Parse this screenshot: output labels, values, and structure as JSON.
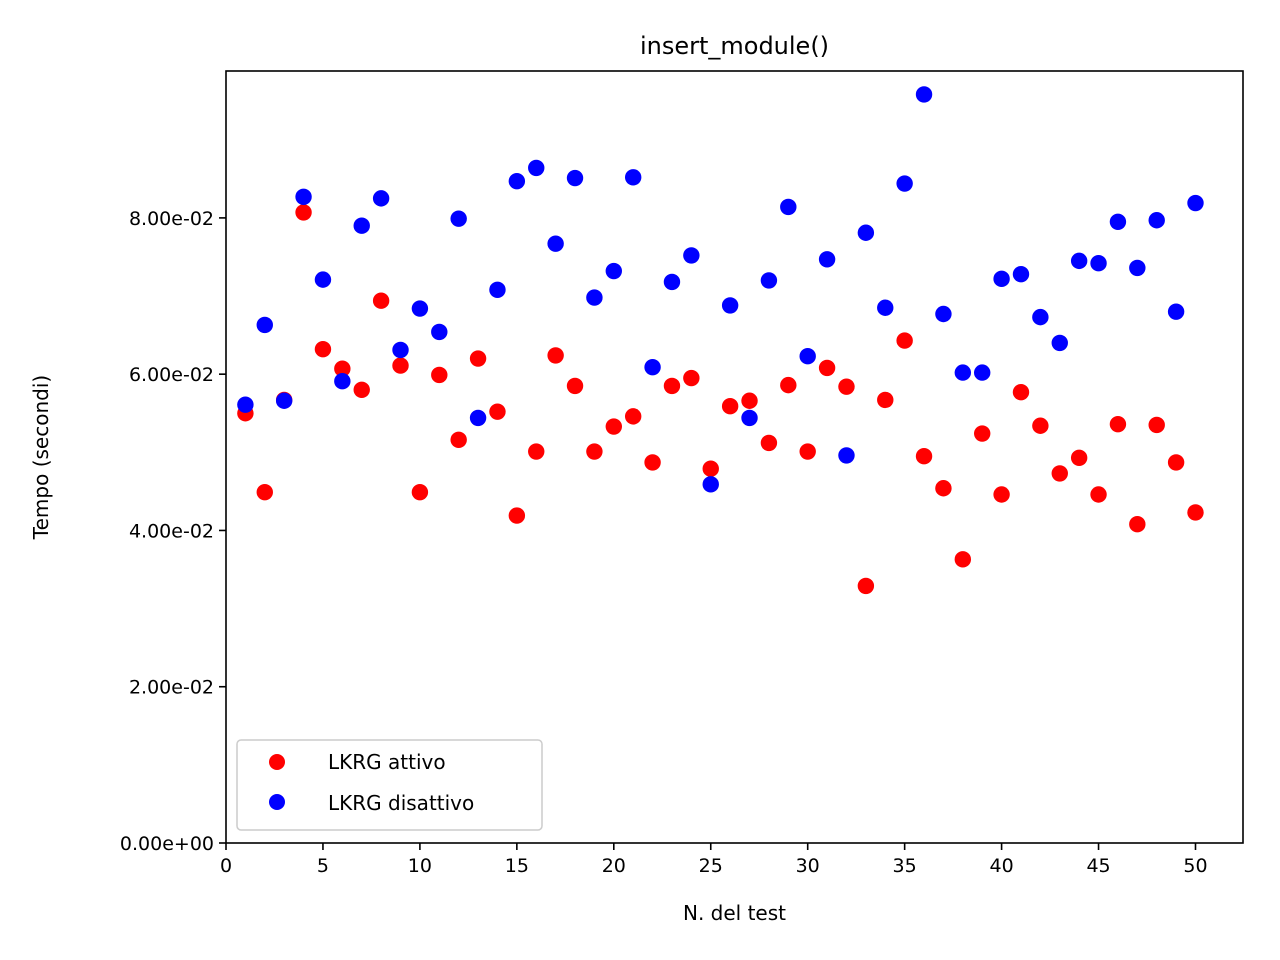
{
  "chart_data": {
    "type": "scatter",
    "title": "insert_module()",
    "xlabel": "N. del test",
    "ylabel": "Tempo (secondi)",
    "xlim": [
      0,
      52.45
    ],
    "ylim": [
      0,
      0.0988
    ],
    "x_ticks": [
      0,
      5,
      10,
      15,
      20,
      25,
      30,
      35,
      40,
      45,
      50
    ],
    "x_tick_labels": [
      "0",
      "5",
      "10",
      "15",
      "20",
      "25",
      "30",
      "35",
      "40",
      "45",
      "50"
    ],
    "y_ticks": [
      0,
      0.02,
      0.04,
      0.06,
      0.08
    ],
    "y_tick_labels": [
      "0.00e+00",
      "2.00e-02",
      "4.00e-02",
      "6.00e-02",
      "8.00e-02"
    ],
    "grid": false,
    "legend_position": "lower-left",
    "x": [
      1,
      2,
      3,
      4,
      5,
      6,
      7,
      8,
      9,
      10,
      11,
      12,
      13,
      14,
      15,
      16,
      17,
      18,
      19,
      20,
      21,
      22,
      23,
      24,
      25,
      26,
      27,
      28,
      29,
      30,
      31,
      32,
      33,
      34,
      35,
      36,
      37,
      38,
      39,
      40,
      41,
      42,
      43,
      44,
      45,
      46,
      47,
      48,
      49,
      50
    ],
    "series": [
      {
        "name": "LKRG attivo",
        "color": "#ff0000",
        "values": [
          0.055,
          0.0449,
          0.0567,
          0.0807,
          0.0632,
          0.0607,
          0.058,
          0.0694,
          0.0611,
          0.0449,
          0.0599,
          0.0516,
          0.062,
          0.0552,
          0.0419,
          0.0501,
          0.0624,
          0.0585,
          0.0501,
          0.0533,
          0.0546,
          0.0487,
          0.0585,
          0.0595,
          0.0479,
          0.0559,
          0.0566,
          0.0512,
          0.0586,
          0.0501,
          0.0608,
          0.0584,
          0.0329,
          0.0567,
          0.0643,
          0.0495,
          0.0454,
          0.0363,
          0.0524,
          0.0446,
          0.0577,
          0.0534,
          0.0473,
          0.0493,
          0.0446,
          0.0536,
          0.0408,
          0.0535,
          0.0487,
          0.0423
        ]
      },
      {
        "name": "LKRG disattivo",
        "color": "#0000ff",
        "values": [
          0.0561,
          0.0663,
          0.0566,
          0.0827,
          0.0721,
          0.0591,
          0.079,
          0.0825,
          0.0631,
          0.0684,
          0.0654,
          0.0799,
          0.0544,
          0.0708,
          0.0847,
          0.0864,
          0.0767,
          0.0851,
          0.0698,
          0.0732,
          0.0852,
          0.0609,
          0.0718,
          0.0752,
          0.0459,
          0.0688,
          0.0544,
          0.072,
          0.0814,
          0.0623,
          0.0747,
          0.0496,
          0.0781,
          0.0685,
          0.0844,
          0.0958,
          0.0677,
          0.0602,
          0.0602,
          0.0722,
          0.0728,
          0.0673,
          0.064,
          0.0745,
          0.0742,
          0.0795,
          0.0736,
          0.0797,
          0.068,
          0.0819
        ]
      }
    ]
  }
}
